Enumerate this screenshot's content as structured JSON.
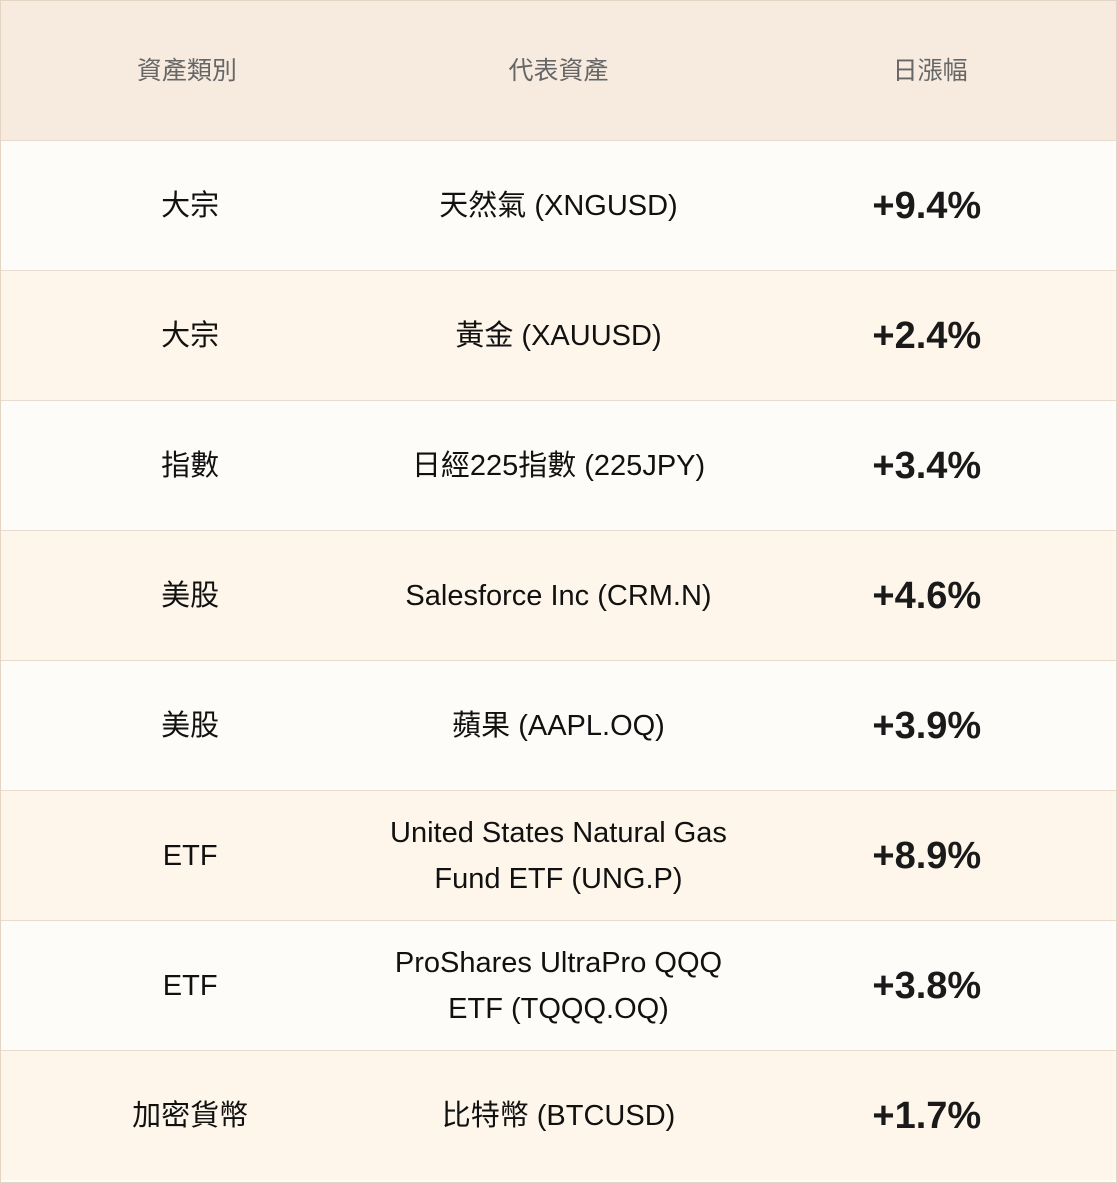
{
  "header": {
    "category": "資產類別",
    "asset": "代表資產",
    "change": "日漲幅"
  },
  "rows": [
    {
      "category": "大宗",
      "asset": "天然氣 (XNGUSD)",
      "change": "+9.4%"
    },
    {
      "category": "大宗",
      "asset": "黃金 (XAUUSD)",
      "change": "+2.4%"
    },
    {
      "category": "指數",
      "asset": "日經225指數 (225JPY)",
      "change": "+3.4%"
    },
    {
      "category": "美股",
      "asset": "Salesforce Inc (CRM.N)",
      "change": "+4.6%"
    },
    {
      "category": "美股",
      "asset": "蘋果 (AAPL.OQ)",
      "change": "+3.9%"
    },
    {
      "category": "ETF",
      "asset": "United States Natural Gas Fund ETF (UNG.P)",
      "change": "+8.9%"
    },
    {
      "category": "ETF",
      "asset": "ProShares UltraPro QQQ ETF (TQQQ.OQ)",
      "change": "+3.8%"
    },
    {
      "category": "加密貨幣",
      "asset": "比特幣 (BTCUSD)",
      "change": "+1.7%"
    }
  ]
}
